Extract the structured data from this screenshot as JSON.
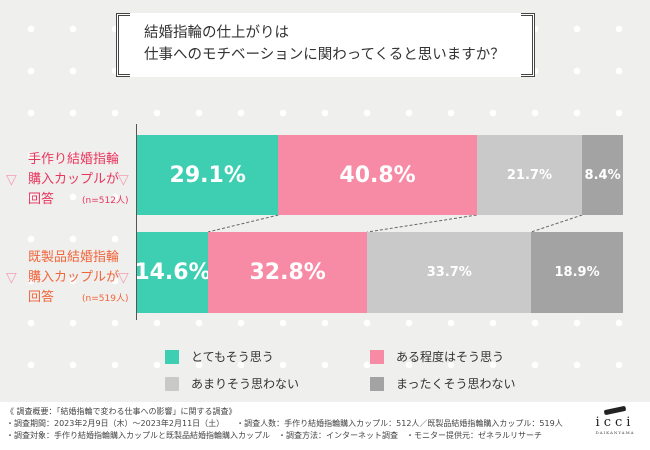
{
  "title": {
    "line1": "結婚指輪の仕上がりは",
    "line2": "仕事へのモチベーションに関わってくると思いますか？"
  },
  "groups": [
    {
      "line1": "手作り結婚指輪",
      "line2": "購入カップルが",
      "line3": "回答",
      "n": "(n=512人)",
      "color": "#e8365d"
    },
    {
      "line1": "既製品結婚指輪",
      "line2": "購入カップルが",
      "line3": "回答",
      "n": "(n=519人)",
      "color": "#f0653c"
    }
  ],
  "chart_data": {
    "type": "bar",
    "stacked": true,
    "orientation": "horizontal",
    "unit": "%",
    "categories": [
      "手作り結婚指輪購入カップル",
      "既製品結婚指輪購入カップル"
    ],
    "series": [
      {
        "name": "とてもそう思う",
        "color": "#3ecfb2",
        "values": [
          29.1,
          14.6
        ],
        "labels": [
          "29.1%",
          "14.6%"
        ]
      },
      {
        "name": "ある程度はそう思う",
        "color": "#f78ba6",
        "values": [
          40.8,
          32.8
        ],
        "labels": [
          "40.8%",
          "32.8%"
        ]
      },
      {
        "name": "あまりそう思わない",
        "color": "#c9c9c9",
        "values": [
          21.7,
          33.7
        ],
        "labels": [
          "21.7%",
          "33.7%"
        ]
      },
      {
        "name": "まったくそう思わない",
        "color": "#a3a3a3",
        "values": [
          8.4,
          18.9
        ],
        "labels": [
          "8.4%",
          "18.9%"
        ]
      }
    ],
    "xlim": [
      0,
      100
    ]
  },
  "footer": {
    "line1": "《 調査概要：「結婚指輪で変わる仕事への影響」に関する調査》",
    "line2": "・調査期間：2023年2月9日（木）～2023年2月11日（土）　　・調査人数：手作り結婚指輪購入カップル：512人／既製品結婚指輪購入カップル：519人",
    "line3": "・調査対象：手作り結婚指輪購入カップルと既製品結婚指輪購入カップル　・調査方法：インターネット調査　・モニター提供元：ゼネラルリサーチ"
  },
  "logo": {
    "name": "icci",
    "sub": "DAIKANYAMA"
  }
}
